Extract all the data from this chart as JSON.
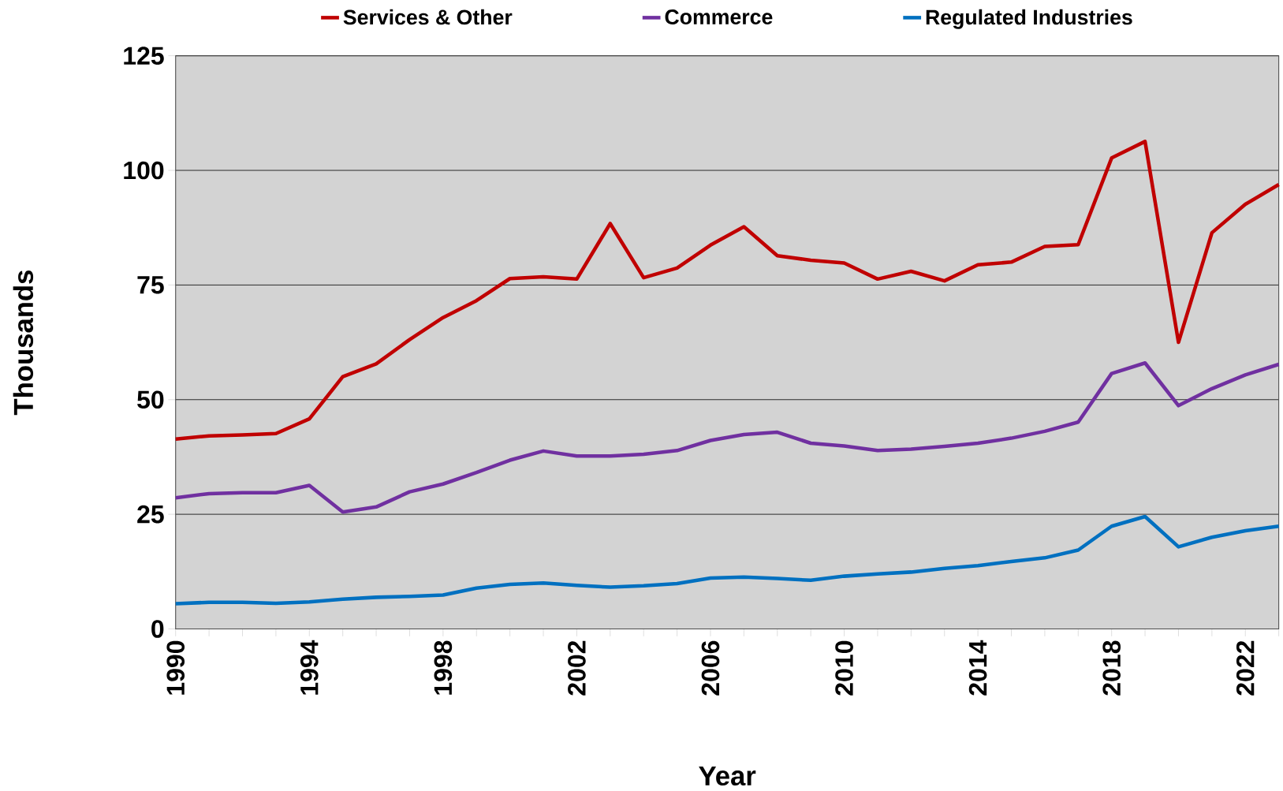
{
  "chart_data": {
    "type": "line",
    "xlabel": "Year",
    "ylabel": "Thousands",
    "legend": "top",
    "grid": "y",
    "x": [
      1990,
      1991,
      1992,
      1993,
      1994,
      1995,
      1996,
      1997,
      1998,
      1999,
      2000,
      2001,
      2002,
      2003,
      2004,
      2005,
      2006,
      2007,
      2008,
      2009,
      2010,
      2011,
      2012,
      2013,
      2014,
      2015,
      2016,
      2017,
      2018,
      2019,
      2020,
      2021,
      2022,
      2023
    ],
    "xlim": [
      1990,
      2023
    ],
    "ylim": [
      0,
      125
    ],
    "xticks": [
      1990,
      {
        "value": 1991,
        "label": null
      },
      {
        "value": 1992,
        "label": null
      },
      {
        "value": 1993,
        "label": null
      },
      1994,
      {
        "value": 1995,
        "label": null
      },
      {
        "value": 1996,
        "label": null
      },
      {
        "value": 1997,
        "label": null
      },
      1998,
      {
        "value": 1999,
        "label": null
      },
      {
        "value": 2000,
        "label": null
      },
      {
        "value": 2001,
        "label": null
      },
      2002,
      {
        "value": 2003,
        "label": null
      },
      {
        "value": 2004,
        "label": null
      },
      {
        "value": 2005,
        "label": null
      },
      2006,
      {
        "value": 2007,
        "label": null
      },
      {
        "value": 2008,
        "label": null
      },
      {
        "value": 2009,
        "label": null
      },
      2010,
      {
        "value": 2011,
        "label": null
      },
      {
        "value": 2012,
        "label": null
      },
      {
        "value": 2013,
        "label": null
      },
      2014,
      {
        "value": 2015,
        "label": null
      },
      {
        "value": 2016,
        "label": null
      },
      {
        "value": 2017,
        "label": null
      },
      2018,
      {
        "value": 2019,
        "label": null
      },
      {
        "value": 2020,
        "label": null
      },
      {
        "value": 2021,
        "label": null
      },
      2022,
      {
        "value": 2023,
        "label": null
      }
    ],
    "yticks": [
      0,
      25,
      50,
      75,
      100,
      125
    ],
    "series": [
      {
        "name": "Services & Other",
        "color": "#c00000",
        "values": [
          41.4,
          42.1,
          42.3,
          42.6,
          45.8,
          55.0,
          57.8,
          63.1,
          67.9,
          71.6,
          76.4,
          76.8,
          76.3,
          88.4,
          76.6,
          78.7,
          83.7,
          87.7,
          81.4,
          80.4,
          79.8,
          76.3,
          78.0,
          75.9,
          79.4,
          80.0,
          83.4,
          83.8,
          102.7,
          106.3,
          62.5,
          86.4,
          92.6,
          96.9
        ]
      },
      {
        "name": "Commerce",
        "color": "#7030a0",
        "values": [
          28.6,
          29.5,
          29.7,
          29.7,
          31.3,
          25.5,
          26.6,
          29.9,
          31.6,
          34.1,
          36.8,
          38.8,
          37.7,
          37.7,
          38.1,
          38.9,
          41.1,
          42.4,
          42.9,
          40.5,
          39.9,
          38.9,
          39.2,
          39.8,
          40.5,
          41.6,
          43.1,
          45.1,
          55.7,
          58.0,
          48.7,
          52.4,
          55.4,
          57.7
        ]
      },
      {
        "name": "Regulated Industries",
        "color": "#0070c0",
        "values": [
          5.5,
          5.8,
          5.8,
          5.6,
          5.9,
          6.5,
          6.9,
          7.1,
          7.4,
          8.9,
          9.7,
          10.0,
          9.5,
          9.1,
          9.4,
          9.9,
          11.1,
          11.3,
          11.0,
          10.6,
          11.5,
          12.0,
          12.4,
          13.2,
          13.8,
          14.7,
          15.5,
          17.2,
          22.4,
          24.5,
          17.9,
          20.0,
          21.4,
          22.4
        ]
      }
    ]
  }
}
